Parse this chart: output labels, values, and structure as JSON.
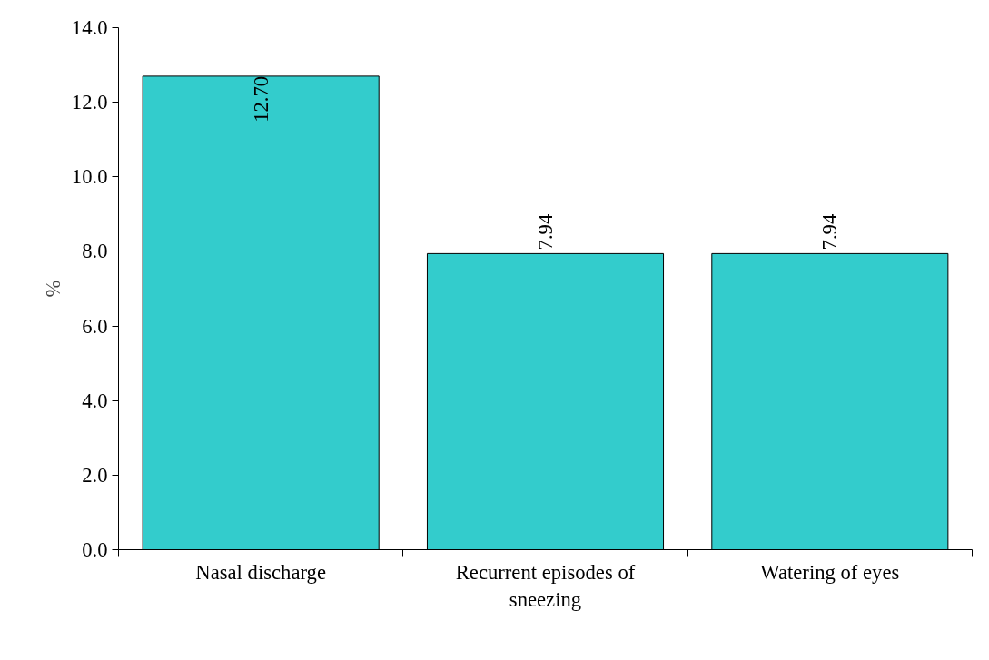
{
  "chart_data": {
    "type": "bar",
    "ylabel": "%",
    "categories": [
      "Nasal discharge",
      "Recurrent episodes of sneezing",
      "Watering of eyes"
    ],
    "values": [
      12.7,
      7.94,
      7.94
    ],
    "color": "#33cccc",
    "value_labels": [
      "12.70",
      "7.94",
      "7.94"
    ],
    "ylim": [
      0,
      14
    ],
    "yticks": [
      {
        "value": 0,
        "label": "0.0"
      },
      {
        "value": 2,
        "label": "2.0"
      },
      {
        "value": 4,
        "label": "4.0"
      },
      {
        "value": 6,
        "label": "6.0"
      },
      {
        "value": 8,
        "label": "8.0"
      },
      {
        "value": 10,
        "label": "10.0"
      },
      {
        "value": 12,
        "label": "12.0"
      },
      {
        "value": 14,
        "label": "14.0"
      }
    ],
    "grid": false
  }
}
